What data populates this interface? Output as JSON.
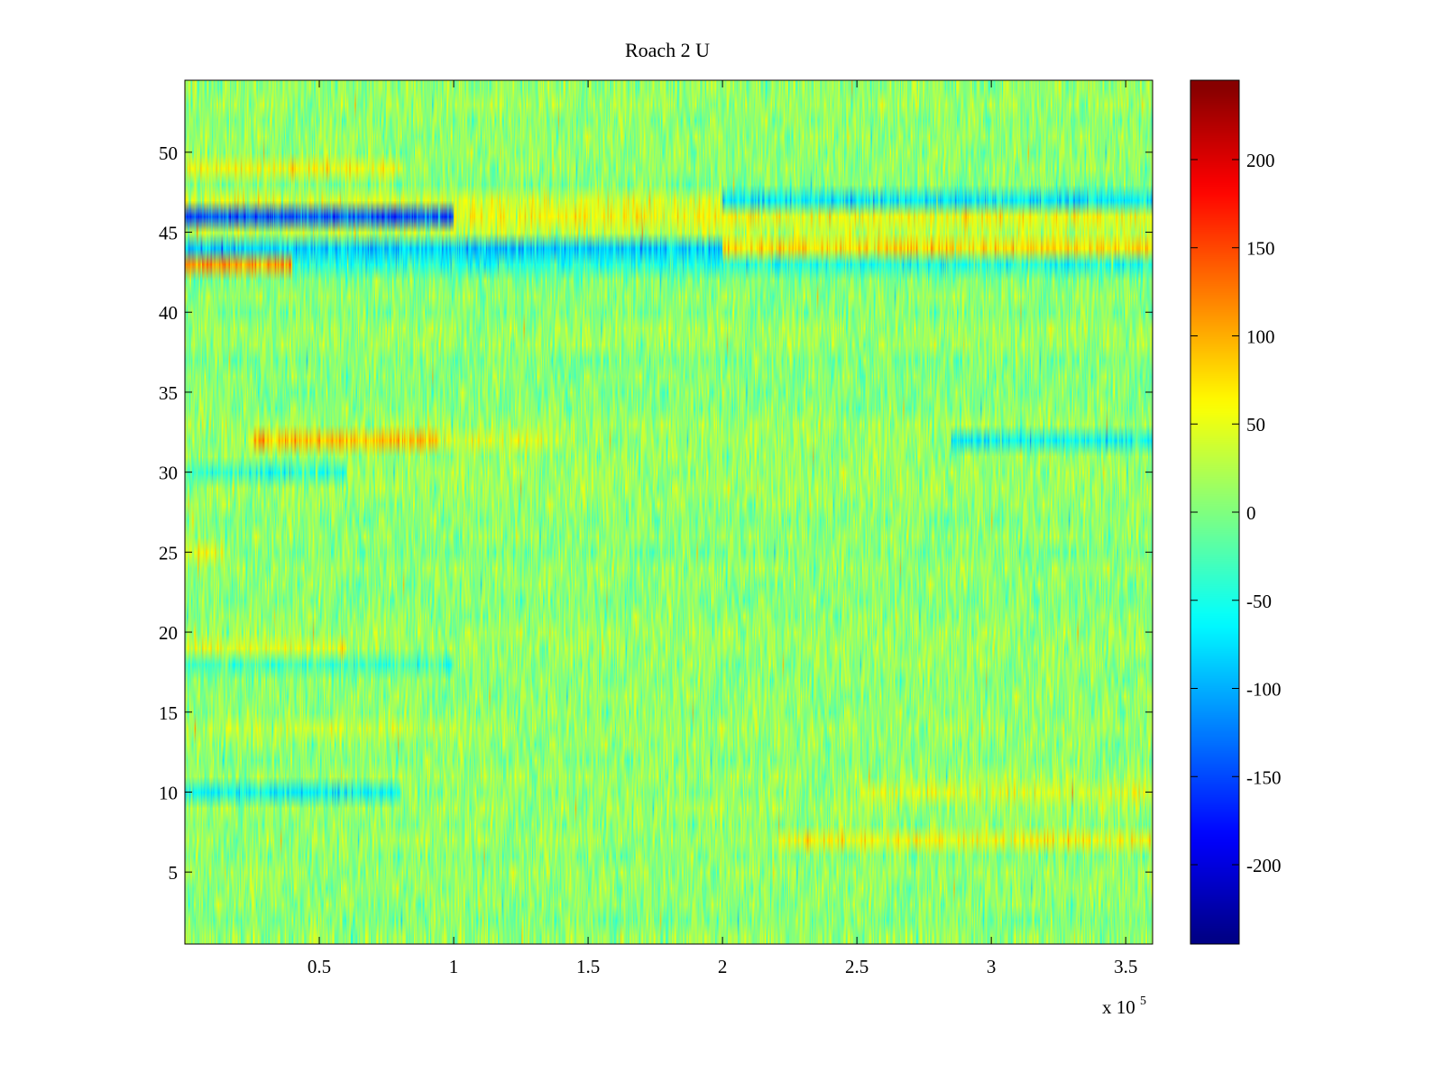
{
  "chart_data": {
    "type": "heatmap",
    "title": "Roach 2 U",
    "xlabel": "",
    "ylabel": "",
    "x_exponent_label": "x 10",
    "x_exponent": "5",
    "xlim": [
      0,
      360000
    ],
    "ylim": [
      0.5,
      54.5
    ],
    "rows": 54,
    "x_ticks": [
      {
        "value": 50000,
        "label": "0.5"
      },
      {
        "value": 100000,
        "label": "1"
      },
      {
        "value": 150000,
        "label": "1.5"
      },
      {
        "value": 200000,
        "label": "2"
      },
      {
        "value": 250000,
        "label": "2.5"
      },
      {
        "value": 300000,
        "label": "3"
      },
      {
        "value": 350000,
        "label": "3.5"
      }
    ],
    "y_ticks": [
      {
        "value": 5,
        "label": "5"
      },
      {
        "value": 10,
        "label": "10"
      },
      {
        "value": 15,
        "label": "15"
      },
      {
        "value": 20,
        "label": "20"
      },
      {
        "value": 25,
        "label": "25"
      },
      {
        "value": 30,
        "label": "30"
      },
      {
        "value": 35,
        "label": "35"
      },
      {
        "value": 40,
        "label": "40"
      },
      {
        "value": 45,
        "label": "45"
      },
      {
        "value": 50,
        "label": "50"
      }
    ],
    "colormap": "jet",
    "clim": [
      -245,
      245
    ],
    "colorbar_ticks": [
      {
        "value": 200,
        "label": "200"
      },
      {
        "value": 150,
        "label": "150"
      },
      {
        "value": 100,
        "label": "100"
      },
      {
        "value": 50,
        "label": "50"
      },
      {
        "value": 0,
        "label": "0"
      },
      {
        "value": -50,
        "label": "-50"
      },
      {
        "value": -100,
        "label": "-100"
      },
      {
        "value": -150,
        "label": "-150"
      },
      {
        "value": -200,
        "label": "-200"
      }
    ],
    "noise_amplitude": 22,
    "row_profile": [
      {
        "row": 43,
        "segments": [
          {
            "x0": 0,
            "x1": 360000,
            "value": -45
          },
          {
            "x0": 0,
            "x1": 40000,
            "value": 105
          }
        ]
      },
      {
        "row": 44,
        "segments": [
          {
            "x0": 0,
            "x1": 200000,
            "value": -85
          },
          {
            "x0": 200000,
            "x1": 360000,
            "value": 75
          }
        ]
      },
      {
        "row": 45,
        "segments": [
          {
            "x0": 0,
            "x1": 360000,
            "value": 30
          }
        ]
      },
      {
        "row": 46,
        "segments": [
          {
            "x0": 0,
            "x1": 100000,
            "value": -140
          },
          {
            "x0": 100000,
            "x1": 360000,
            "value": 55
          }
        ]
      },
      {
        "row": 47,
        "segments": [
          {
            "x0": 0,
            "x1": 200000,
            "value": 40
          },
          {
            "x0": 200000,
            "x1": 360000,
            "value": -70
          }
        ]
      },
      {
        "row": 49,
        "segments": [
          {
            "x0": 0,
            "x1": 80000,
            "value": 55
          }
        ]
      },
      {
        "row": 32,
        "segments": [
          {
            "x0": 25000,
            "x1": 95000,
            "value": 90
          },
          {
            "x0": 95000,
            "x1": 145000,
            "value": 40
          },
          {
            "x0": 285000,
            "x1": 360000,
            "value": -55
          }
        ]
      },
      {
        "row": 10,
        "segments": [
          {
            "x0": 0,
            "x1": 80000,
            "value": -60
          },
          {
            "x0": 250000,
            "x1": 360000,
            "value": 40
          }
        ]
      },
      {
        "row": 7,
        "segments": [
          {
            "x0": 220000,
            "x1": 360000,
            "value": 55
          }
        ]
      },
      {
        "row": 19,
        "segments": [
          {
            "x0": 0,
            "x1": 60000,
            "value": 45
          }
        ]
      },
      {
        "row": 30,
        "segments": [
          {
            "x0": 0,
            "x1": 60000,
            "value": -35
          }
        ]
      },
      {
        "row": 18,
        "segments": [
          {
            "x0": 0,
            "x1": 100000,
            "value": -30
          }
        ]
      },
      {
        "row": 25,
        "segments": [
          {
            "x0": 0,
            "x1": 15000,
            "value": 50
          }
        ]
      },
      {
        "row": 14,
        "segments": [
          {
            "x0": 0,
            "x1": 100000,
            "value": 30
          }
        ]
      }
    ]
  }
}
